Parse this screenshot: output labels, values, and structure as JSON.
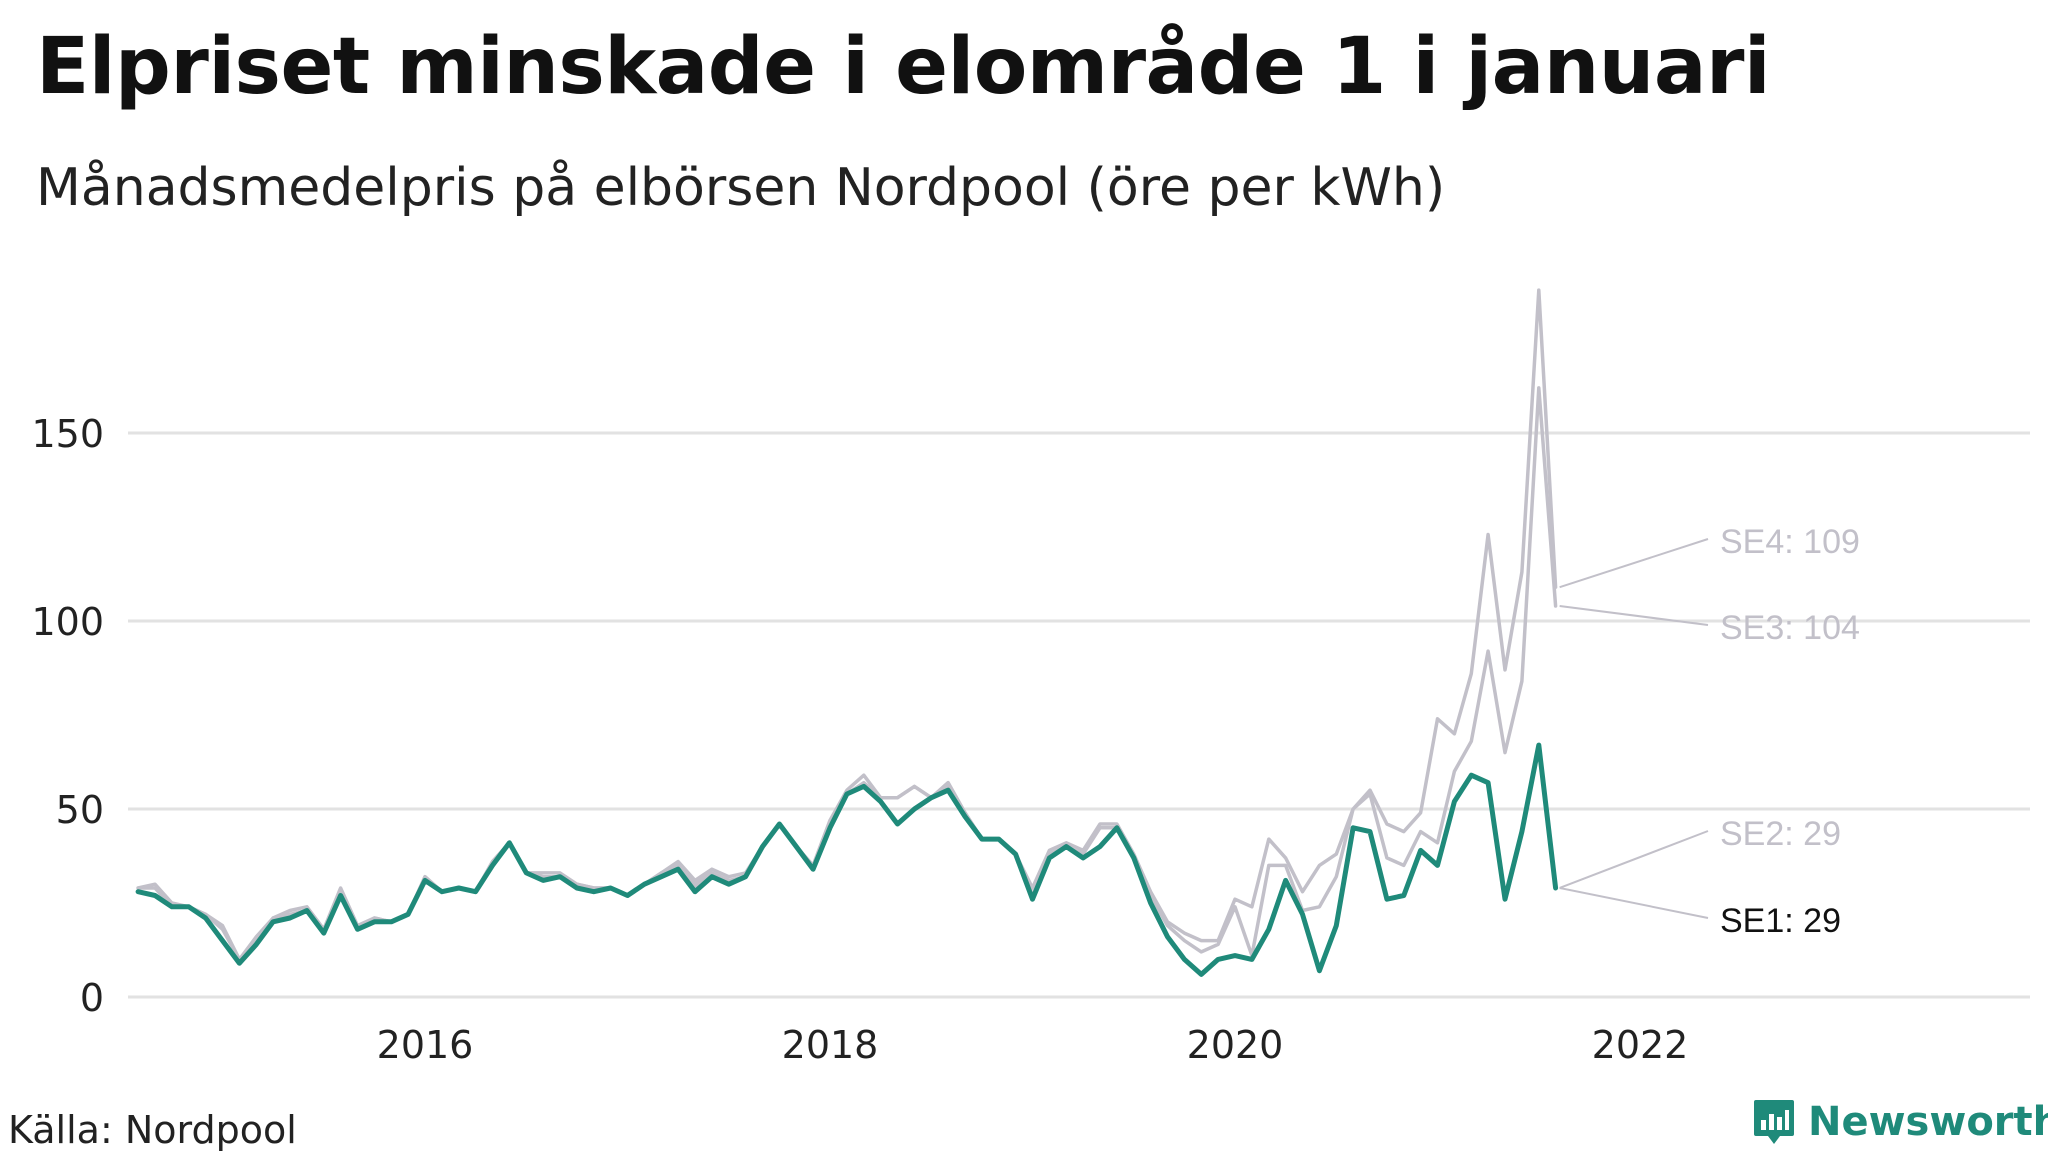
{
  "header": {
    "title": "Elpriset minskade i elområde 1 i januari",
    "subtitle": "Månadsmedelpris på elbörsen Nordpool (öre per kWh)"
  },
  "footer": {
    "source": "Källa: Nordpool",
    "brand": "Newsworthy"
  },
  "colors": {
    "se1": "#1f8a7a",
    "others": "#c2c0c9",
    "grid": "#e2e2e2",
    "se1_label": "#111111",
    "other_label": "#c2c0c9"
  },
  "chart_data": {
    "type": "line",
    "title": "Elpriset minskade i elområde 1 i januari",
    "subtitle": "Månadsmedelpris på elbörsen Nordpool (öre per kWh)",
    "xlabel": "",
    "ylabel": "",
    "x_start": "2015-01",
    "x_end": "2022-01",
    "xlim": [
      "2014-10",
      "2023-09"
    ],
    "ylim": [
      0,
      190
    ],
    "yticks": [
      0,
      50,
      100,
      150
    ],
    "xticks": [
      {
        "label": "2016",
        "month": "2016-06"
      },
      {
        "label": "2018",
        "month": "2018-06"
      },
      {
        "label": "2020",
        "month": "2020-06"
      },
      {
        "label": "2022",
        "month": "2022-06"
      }
    ],
    "grid": true,
    "legend": "end-of-line labels",
    "series": [
      {
        "name": "SE4",
        "end_label": "SE4: 109",
        "values": [
          29,
          30,
          25,
          24,
          22,
          19,
          10,
          16,
          21,
          23,
          24,
          18,
          29,
          19,
          21,
          20,
          22,
          32,
          28,
          29,
          28,
          36,
          41,
          33,
          33,
          33,
          30,
          29,
          29,
          27,
          30,
          33,
          36,
          31,
          34,
          32,
          33,
          40,
          46,
          40,
          35,
          47,
          55,
          59,
          53,
          53,
          56,
          53,
          57,
          49,
          42,
          42,
          38,
          29,
          39,
          41,
          39,
          46,
          46,
          38,
          28,
          20,
          17,
          15,
          15,
          26,
          24,
          42,
          37,
          28,
          35,
          38,
          50,
          55,
          46,
          44,
          49,
          74,
          70,
          86,
          123,
          87,
          113,
          188,
          109
        ]
      },
      {
        "name": "SE3",
        "end_label": "SE3: 104",
        "values": [
          29,
          29,
          24,
          24,
          22,
          18,
          10,
          15,
          21,
          22,
          23,
          18,
          28,
          18,
          21,
          20,
          22,
          32,
          28,
          29,
          28,
          36,
          41,
          33,
          32,
          32,
          30,
          29,
          29,
          27,
          30,
          33,
          35,
          30,
          33,
          31,
          32,
          40,
          46,
          40,
          34,
          46,
          54,
          57,
          53,
          53,
          56,
          53,
          57,
          49,
          42,
          42,
          38,
          27,
          38,
          40,
          38,
          45,
          45,
          37,
          27,
          19,
          15,
          12,
          14,
          24,
          11,
          35,
          35,
          23,
          24,
          32,
          50,
          54,
          37,
          35,
          44,
          41,
          60,
          68,
          92,
          65,
          84,
          162,
          104
        ]
      },
      {
        "name": "SE2",
        "end_label": "SE2: 29",
        "values": [
          28,
          27,
          24,
          24,
          21,
          15,
          9,
          14,
          20,
          21,
          23,
          17,
          27,
          18,
          20,
          20,
          22,
          31,
          28,
          29,
          28,
          35,
          41,
          33,
          31,
          32,
          29,
          28,
          29,
          27,
          30,
          32,
          34,
          29,
          32,
          30,
          32,
          40,
          46,
          40,
          34,
          45,
          54,
          56,
          52,
          46,
          50,
          53,
          56,
          49,
          42,
          42,
          38,
          26,
          37,
          40,
          37,
          40,
          45,
          37,
          25,
          16,
          10,
          6,
          10,
          11,
          10,
          18,
          31,
          22,
          7,
          19,
          45,
          44,
          26,
          27,
          39,
          35,
          52,
          59,
          57,
          26,
          44,
          67,
          29
        ]
      },
      {
        "name": "SE1",
        "end_label": "SE1: 29",
        "values": [
          28,
          27,
          24,
          24,
          21,
          15,
          9,
          14,
          20,
          21,
          23,
          17,
          27,
          18,
          20,
          20,
          22,
          31,
          28,
          29,
          28,
          35,
          41,
          33,
          31,
          32,
          29,
          28,
          29,
          27,
          30,
          32,
          34,
          28,
          32,
          30,
          32,
          40,
          46,
          40,
          34,
          45,
          54,
          56,
          52,
          46,
          50,
          53,
          55,
          48,
          42,
          42,
          38,
          26,
          37,
          40,
          37,
          40,
          45,
          37,
          25,
          16,
          10,
          6,
          10,
          11,
          10,
          18,
          31,
          22,
          7,
          19,
          45,
          44,
          26,
          27,
          39,
          35,
          52,
          59,
          57,
          26,
          44,
          67,
          29
        ]
      }
    ]
  }
}
